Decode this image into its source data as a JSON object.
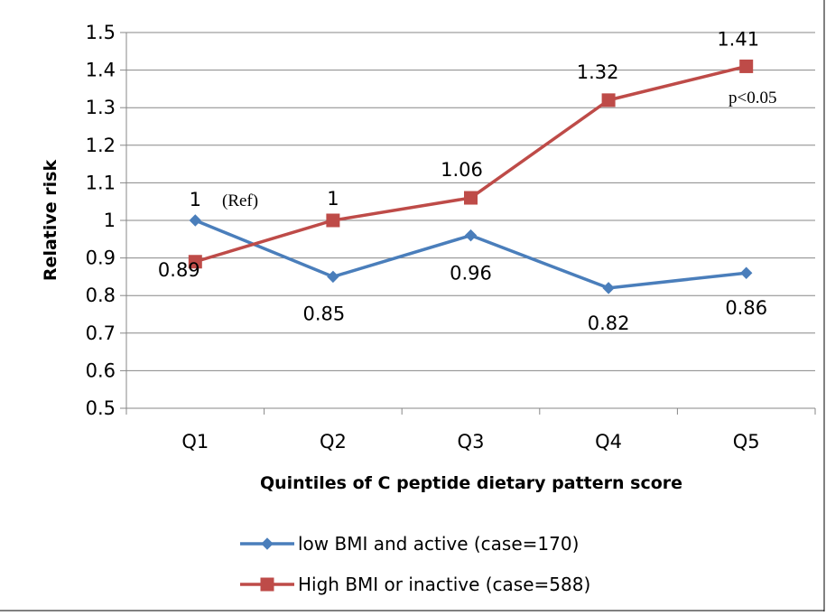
{
  "chart_data": {
    "type": "line",
    "title": "",
    "xlabel": "Quintiles of C peptide dietary pattern score",
    "ylabel": "Relative risk",
    "categories": [
      "Q1",
      "Q2",
      "Q3",
      "Q4",
      "Q5"
    ],
    "ylim": [
      0.5,
      1.5
    ],
    "y_ticks": [
      "0.5",
      "0.6",
      "0.7",
      "0.8",
      "0.9",
      "1",
      "1.1",
      "1.2",
      "1.3",
      "1.4",
      "1.5"
    ],
    "grid": "horizontal",
    "legend_position": "bottom",
    "series": [
      {
        "name": "low BMI and active (case=170)",
        "color": "#4a7ebb",
        "marker": "diamond",
        "values": [
          1,
          0.85,
          0.96,
          0.82,
          0.86
        ],
        "labels": [
          "1",
          "0.85",
          "0.96",
          "0.82",
          "0.86"
        ]
      },
      {
        "name": "High BMI or inactive (case=588)",
        "color": "#be4b48",
        "marker": "square",
        "values": [
          0.89,
          1,
          1.06,
          1.32,
          1.41
        ],
        "labels": [
          "0.89",
          "1",
          "1.06",
          "1.32",
          "1.41"
        ]
      }
    ],
    "annotations": [
      "(Ref)",
      "p<0.05"
    ]
  }
}
